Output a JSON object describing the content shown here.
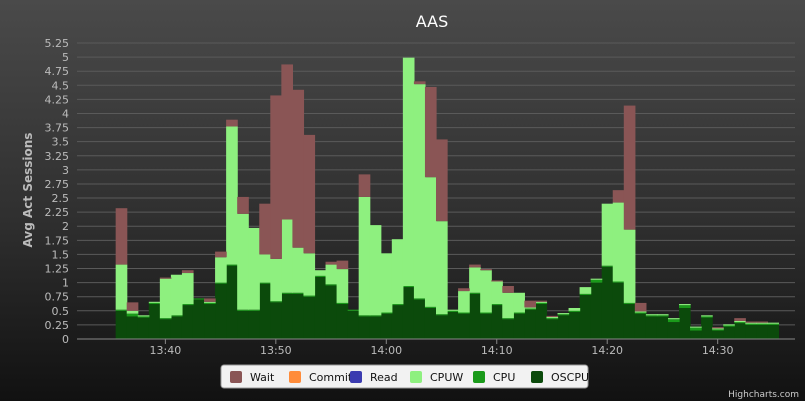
{
  "chart_data": {
    "type": "area",
    "stacking": "normal",
    "title": "AAS",
    "ylabel": "Avg Act Sessions",
    "xlabel": "",
    "ylim": [
      0,
      5.25
    ],
    "y_ticks": [
      "0",
      "0.25",
      "0.5",
      "0.75",
      "1",
      "1.25",
      "1.5",
      "1.75",
      "2",
      "2.25",
      "2.5",
      "2.75",
      "3",
      "3.25",
      "3.5",
      "3.75",
      "4",
      "4.25",
      "4.5",
      "4.75",
      "5",
      "5.25"
    ],
    "x_ticks": [
      "13:40",
      "13:50",
      "14:00",
      "14:10",
      "14:20",
      "14:30"
    ],
    "x_tick_minutes": [
      820,
      830,
      840,
      850,
      860,
      870
    ],
    "x_start_minutes": 816,
    "x_end_minutes": 875,
    "grid": true,
    "legend_position": "bottom",
    "categories_minutes": [
      816,
      817,
      818,
      819,
      820,
      821,
      822,
      823,
      824,
      825,
      826,
      827,
      828,
      829,
      830,
      831,
      832,
      833,
      834,
      835,
      836,
      837,
      838,
      839,
      840,
      841,
      842,
      843,
      844,
      845,
      846,
      847,
      848,
      849,
      850,
      851,
      852,
      853,
      854,
      855,
      856,
      857,
      858,
      859,
      860,
      861,
      862,
      863,
      864,
      865,
      866,
      867,
      868,
      869,
      870,
      871,
      872,
      873,
      874,
      875
    ],
    "series": [
      {
        "name": "OSCPU",
        "color": "#0b4a0b",
        "values": [
          0.5,
          0.4,
          0.38,
          0.62,
          0.35,
          0.4,
          0.6,
          0.7,
          0.62,
          0.98,
          1.3,
          0.5,
          0.5,
          0.98,
          0.65,
          0.8,
          0.8,
          0.75,
          1.1,
          0.95,
          0.62,
          0.5,
          0.4,
          0.4,
          0.45,
          0.6,
          0.92,
          0.7,
          0.55,
          0.42,
          0.48,
          0.45,
          0.8,
          0.45,
          0.6,
          0.35,
          0.45,
          0.52,
          0.62,
          0.35,
          0.42,
          0.48,
          0.78,
          1.0,
          1.28,
          1.0,
          0.62,
          0.45,
          0.4,
          0.4,
          0.3,
          0.55,
          0.15,
          0.38,
          0.15,
          0.22,
          0.28,
          0.25,
          0.25,
          0.25
        ]
      },
      {
        "name": "CPU",
        "color": "#1a9a1a",
        "values": [
          0.02,
          0.05,
          0.02,
          0.02,
          0.02,
          0.02,
          0.02,
          0.02,
          0.02,
          0.02,
          0.02,
          0.02,
          0.02,
          0.02,
          0.02,
          0.02,
          0.02,
          0.02,
          0.02,
          0.02,
          0.02,
          0.02,
          0.02,
          0.02,
          0.02,
          0.02,
          0.02,
          0.02,
          0.02,
          0.02,
          0.02,
          0.02,
          0.02,
          0.02,
          0.02,
          0.02,
          0.02,
          0.02,
          0.02,
          0.02,
          0.02,
          0.02,
          0.02,
          0.05,
          0.02,
          0.02,
          0.02,
          0.02,
          0.02,
          0.02,
          0.05,
          0.05,
          0.05,
          0.02,
          0.02,
          0.02,
          0.02,
          0.02,
          0.02,
          0.02
        ]
      },
      {
        "name": "CPUW",
        "color": "#8ef07f",
        "values": [
          0.8,
          0.05,
          0.02,
          0.02,
          0.7,
          0.72,
          0.55,
          0.0,
          0.02,
          0.45,
          2.45,
          1.7,
          1.45,
          0.5,
          0.75,
          1.3,
          0.8,
          0.75,
          0.1,
          0.35,
          0.6,
          0.0,
          2.1,
          1.6,
          1.05,
          1.15,
          4.05,
          3.8,
          2.3,
          1.65,
          0.02,
          0.38,
          0.45,
          0.75,
          0.4,
          0.45,
          0.35,
          0.02,
          0.02,
          0.02,
          0.02,
          0.05,
          0.12,
          0.02,
          1.1,
          1.4,
          1.3,
          0.02,
          0.02,
          0.02,
          0.02,
          0.02,
          0.02,
          0.02,
          0.02,
          0.02,
          0.02,
          0.02,
          0.02,
          0.02
        ]
      },
      {
        "name": "CPUW",
        "color": "#8ef07f",
        "values": [
          0,
          0,
          0,
          0,
          0,
          0,
          0,
          0,
          0,
          0,
          0,
          0,
          0,
          0,
          0,
          0,
          0,
          0,
          0,
          0,
          0,
          0,
          0,
          0,
          0,
          0,
          0,
          0,
          0,
          0,
          0,
          0,
          0,
          0,
          0,
          0,
          0,
          0,
          0,
          0,
          0,
          0,
          0,
          0,
          0,
          0,
          0,
          0,
          0,
          0,
          0,
          0,
          0,
          0,
          0,
          0,
          0,
          0,
          0,
          0
        ]
      },
      {
        "name": "Wait",
        "color": "#8a5555",
        "values": [
          1.0,
          0.15,
          0.0,
          0.0,
          0.02,
          0.0,
          0.05,
          0.0,
          0.06,
          0.1,
          0.12,
          0.3,
          0.0,
          0.9,
          2.9,
          2.75,
          2.8,
          2.1,
          0.0,
          0.05,
          0.15,
          0.0,
          0.4,
          0.0,
          0.0,
          0.0,
          0.0,
          0.05,
          1.6,
          1.45,
          0.0,
          0.05,
          0.05,
          0.02,
          0.02,
          0.12,
          0.0,
          0.12,
          0.02,
          0.02,
          0.0,
          0.0,
          0.0,
          0.0,
          0.0,
          0.22,
          2.2,
          0.15,
          0.0,
          0.0,
          0.0,
          0.0,
          0.0,
          0.0,
          0.02,
          0.0,
          0.05,
          0.02,
          0.02,
          0.0
        ]
      }
    ],
    "legend": [
      {
        "name": "Wait",
        "color": "#8a5555"
      },
      {
        "name": "Commit",
        "color": "#ff8c3a"
      },
      {
        "name": "Read",
        "color": "#3b3bb0"
      },
      {
        "name": "CPUW",
        "color": "#8ef07f"
      },
      {
        "name": "CPU",
        "color": "#1a9a1a"
      },
      {
        "name": "OSCPU",
        "color": "#0b4a0b"
      }
    ],
    "credits": "Highcharts.com"
  }
}
